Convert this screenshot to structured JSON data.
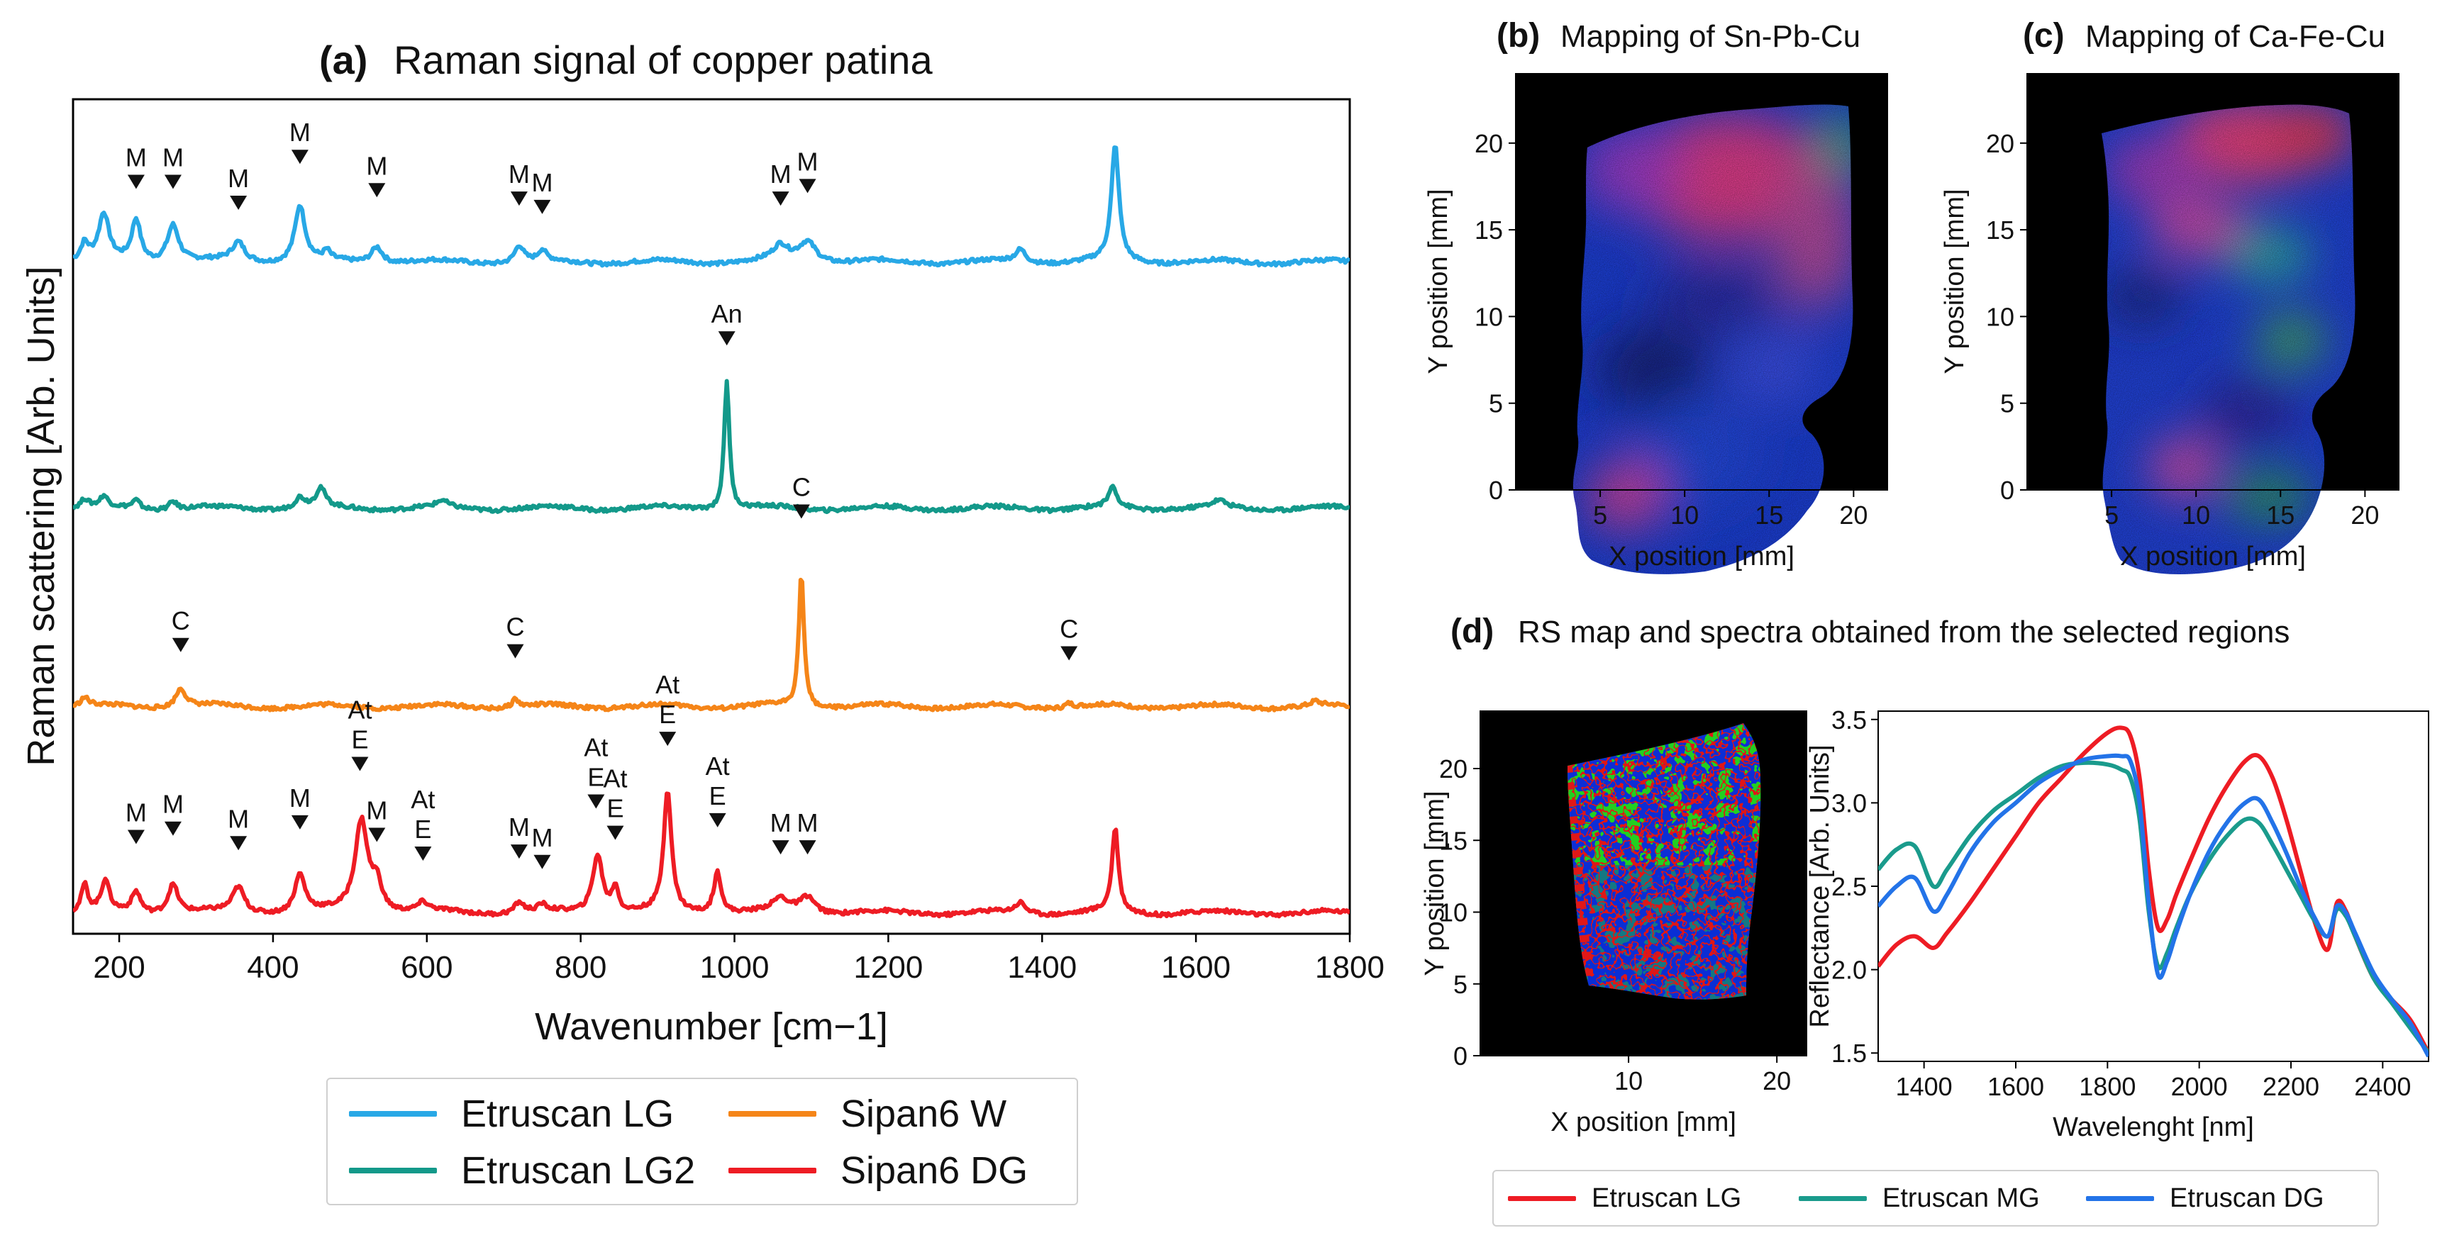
{
  "colors": {
    "etruscan_lg": "#28a8e6",
    "etruscan_lg2": "#13998a",
    "sipan6_w": "#f58518",
    "sipan6_dg": "#ee1c24",
    "d_lg": "#ee1c24",
    "d_mg": "#1a9b8c",
    "d_dg": "#2373e8",
    "map_bg": "#000000"
  },
  "chart_data": [
    {
      "id": "a",
      "type": "line",
      "panel_label": "(a)",
      "title": "Raman signal of copper patina",
      "xlabel": "Wavenumber [cm−1]",
      "ylabel": "Raman scattering [Arb. Units]",
      "xlim": [
        140,
        1800
      ],
      "ylim": [
        0,
        4
      ],
      "xticks": [
        "200",
        "400",
        "600",
        "800",
        "1000",
        "1200",
        "1400",
        "1600",
        "1800"
      ],
      "xtick_values": [
        200,
        400,
        600,
        800,
        1000,
        1200,
        1400,
        1600,
        1800
      ],
      "y_ticks_shown": false,
      "series": [
        {
          "name": "Etruscan LG",
          "color_key": "etruscan_lg",
          "baseline": 3.22,
          "peaks": [
            [
              155,
              0.08,
              6
            ],
            [
              180,
              0.22,
              8
            ],
            [
              222,
              0.2,
              7
            ],
            [
              270,
              0.18,
              9
            ],
            [
              355,
              0.09,
              10
            ],
            [
              435,
              0.27,
              8
            ],
            [
              470,
              0.04,
              5
            ],
            [
              535,
              0.08,
              9
            ],
            [
              720,
              0.08,
              7
            ],
            [
              750,
              0.05,
              6
            ],
            [
              1060,
              0.07,
              12
            ],
            [
              1095,
              0.1,
              14
            ],
            [
              1372,
              0.06,
              8
            ],
            [
              1495,
              0.55,
              6
            ]
          ],
          "annotations": [
            {
              "x": 222,
              "label": "M",
              "y": 3.57
            },
            {
              "x": 270,
              "label": "M",
              "y": 3.57
            },
            {
              "x": 355,
              "label": "M",
              "y": 3.47
            },
            {
              "x": 435,
              "label": "M",
              "y": 3.69
            },
            {
              "x": 535,
              "label": "M",
              "y": 3.53
            },
            {
              "x": 720,
              "label": "M",
              "y": 3.49
            },
            {
              "x": 750,
              "label": "M",
              "y": 3.45
            },
            {
              "x": 1060,
              "label": "M",
              "y": 3.49
            },
            {
              "x": 1095,
              "label": "M",
              "y": 3.55
            }
          ]
        },
        {
          "name": "Etruscan LG2",
          "color_key": "etruscan_lg2",
          "baseline": 2.04,
          "peaks": [
            [
              155,
              0.04,
              6
            ],
            [
              180,
              0.05,
              6
            ],
            [
              222,
              0.04,
              6
            ],
            [
              270,
              0.04,
              6
            ],
            [
              435,
              0.05,
              8
            ],
            [
              462,
              0.09,
              7
            ],
            [
              620,
              0.03,
              8
            ],
            [
              990,
              0.62,
              4
            ],
            [
              1492,
              0.1,
              6
            ],
            [
              1630,
              0.03,
              10
            ]
          ],
          "annotations": [
            {
              "x": 990,
              "label": "An",
              "y": 2.82
            }
          ]
        },
        {
          "name": "Sipan6 W",
          "color_key": "sipan6_w",
          "baseline": 1.09,
          "peaks": [
            [
              155,
              0.04,
              6
            ],
            [
              280,
              0.09,
              8
            ],
            [
              715,
              0.04,
              5
            ],
            [
              1087,
              0.64,
              4
            ],
            [
              1435,
              0.02,
              6
            ],
            [
              1755,
              0.02,
              6
            ]
          ],
          "annotations": [
            {
              "x": 280,
              "label": "C",
              "y": 1.35
            },
            {
              "x": 715,
              "label": "C",
              "y": 1.32
            },
            {
              "x": 1087,
              "label": "C",
              "y": 1.99
            },
            {
              "x": 1435,
              "label": "C",
              "y": 1.31
            }
          ]
        },
        {
          "name": "Sipan6 DG",
          "color_key": "sipan6_dg",
          "baseline": 0.1,
          "peaks": [
            [
              155,
              0.13,
              5
            ],
            [
              182,
              0.15,
              6
            ],
            [
              222,
              0.1,
              7
            ],
            [
              270,
              0.14,
              8
            ],
            [
              355,
              0.12,
              9
            ],
            [
              435,
              0.18,
              8
            ],
            [
              515,
              0.44,
              10
            ],
            [
              535,
              0.13,
              8
            ],
            [
              595,
              0.04,
              8
            ],
            [
              720,
              0.05,
              7
            ],
            [
              750,
              0.03,
              6
            ],
            [
              822,
              0.28,
              8
            ],
            [
              845,
              0.12,
              5
            ],
            [
              913,
              0.58,
              6
            ],
            [
              978,
              0.2,
              6
            ],
            [
              1060,
              0.06,
              12
            ],
            [
              1095,
              0.08,
              12
            ],
            [
              1372,
              0.05,
              8
            ],
            [
              1495,
              0.4,
              5
            ]
          ],
          "annotations": [
            {
              "x": 222,
              "label": "M",
              "y": 0.43
            },
            {
              "x": 270,
              "label": "M",
              "y": 0.47
            },
            {
              "x": 355,
              "label": "M",
              "y": 0.4
            },
            {
              "x": 435,
              "label": "M",
              "y": 0.5
            },
            {
              "x": 513,
              "label": "At\nE",
              "y": 0.78
            },
            {
              "x": 535,
              "label": "M",
              "y": 0.44
            },
            {
              "x": 595,
              "label": "At\nE",
              "y": 0.35
            },
            {
              "x": 720,
              "label": "M",
              "y": 0.36
            },
            {
              "x": 750,
              "label": "M",
              "y": 0.31
            },
            {
              "x": 820,
              "label": "At\nE",
              "y": 0.6
            },
            {
              "x": 845,
              "label": "At\nE",
              "y": 0.45
            },
            {
              "x": 913,
              "label": "At\nE",
              "y": 0.9
            },
            {
              "x": 978,
              "label": "At\nE",
              "y": 0.51
            },
            {
              "x": 1060,
              "label": "M",
              "y": 0.38
            },
            {
              "x": 1095,
              "label": "M",
              "y": 0.38
            }
          ]
        }
      ],
      "legend": {
        "position": "below",
        "items": [
          {
            "label": "Etruscan LG",
            "color_key": "etruscan_lg"
          },
          {
            "label": "Sipan6 W",
            "color_key": "sipan6_w"
          },
          {
            "label": "Etruscan LG2",
            "color_key": "etruscan_lg2"
          },
          {
            "label": "Sipan6 DG",
            "color_key": "sipan6_dg"
          }
        ]
      }
    },
    {
      "id": "b",
      "type": "heatmap",
      "panel_label": "(b)",
      "title": "Mapping of Sn-Pb-Cu",
      "xlabel": "X position [mm]",
      "ylabel": "Y position [mm]",
      "xlim": [
        0,
        22
      ],
      "ylim": [
        0,
        24
      ],
      "xticks": [
        5,
        10,
        15,
        20
      ],
      "yticks": [
        0,
        5,
        10,
        15,
        20
      ],
      "channels": [
        "Sn",
        "Pb",
        "Cu"
      ]
    },
    {
      "id": "c",
      "type": "heatmap",
      "panel_label": "(c)",
      "title": "Mapping of Ca-Fe-Cu",
      "xlabel": "X position [mm]",
      "ylabel": "Y position [mm]",
      "xlim": [
        0,
        22
      ],
      "ylim": [
        0,
        24
      ],
      "xticks": [
        5,
        10,
        15,
        20
      ],
      "yticks": [
        0,
        5,
        10,
        15,
        20
      ],
      "channels": [
        "Ca",
        "Fe",
        "Cu"
      ]
    },
    {
      "id": "d_map",
      "type": "heatmap",
      "panel_label": "(d)",
      "title": "RS map and spectra obtained from the selected regions",
      "xlabel": "X position [mm]",
      "ylabel": "Y position [mm]",
      "xlim": [
        0,
        22
      ],
      "ylim": [
        0,
        24
      ],
      "xticks": [
        10,
        20
      ],
      "yticks": [
        0,
        5,
        10,
        15,
        20
      ]
    },
    {
      "id": "d_spectra",
      "type": "line",
      "xlabel": "Wavelenght [nm]",
      "ylabel": "Reflectance [Arb. Units]",
      "xlim": [
        1300,
        2500
      ],
      "ylim": [
        1.45,
        3.55
      ],
      "xticks": [
        1400,
        1600,
        1800,
        2000,
        2200,
        2400
      ],
      "yticks": [
        1.5,
        2.0,
        2.5,
        3.0,
        3.5
      ],
      "series": [
        {
          "name": "Etruscan LG",
          "color_key": "d_lg",
          "x": [
            1300,
            1340,
            1380,
            1420,
            1450,
            1500,
            1550,
            1600,
            1650,
            1700,
            1750,
            1800,
            1830,
            1850,
            1870,
            1890,
            1910,
            1930,
            1950,
            1980,
            2020,
            2060,
            2100,
            2130,
            2160,
            2190,
            2220,
            2250,
            2280,
            2300,
            2320,
            2340,
            2380,
            2420,
            2460,
            2500
          ],
          "values": [
            2.02,
            2.15,
            2.2,
            2.13,
            2.22,
            2.4,
            2.6,
            2.8,
            3.0,
            3.15,
            3.3,
            3.42,
            3.45,
            3.4,
            3.15,
            2.6,
            2.25,
            2.3,
            2.45,
            2.65,
            2.9,
            3.1,
            3.25,
            3.28,
            3.15,
            2.9,
            2.6,
            2.3,
            2.12,
            2.4,
            2.35,
            2.2,
            1.95,
            1.82,
            1.7,
            1.5
          ]
        },
        {
          "name": "Etruscan MG",
          "color_key": "d_mg",
          "x": [
            1300,
            1340,
            1380,
            1420,
            1450,
            1500,
            1550,
            1600,
            1650,
            1700,
            1750,
            1800,
            1830,
            1850,
            1870,
            1890,
            1910,
            1930,
            1950,
            1980,
            2020,
            2060,
            2100,
            2130,
            2160,
            2190,
            2220,
            2250,
            2280,
            2300,
            2320,
            2340,
            2380,
            2420,
            2460,
            2500
          ],
          "values": [
            2.6,
            2.72,
            2.74,
            2.5,
            2.6,
            2.8,
            2.95,
            3.05,
            3.15,
            3.22,
            3.24,
            3.23,
            3.2,
            3.15,
            2.9,
            2.35,
            2.02,
            2.1,
            2.25,
            2.45,
            2.65,
            2.8,
            2.9,
            2.88,
            2.75,
            2.6,
            2.45,
            2.3,
            2.2,
            2.36,
            2.32,
            2.2,
            1.95,
            1.8,
            1.65,
            1.5
          ]
        },
        {
          "name": "Etruscan DG",
          "color_key": "d_dg",
          "x": [
            1300,
            1340,
            1380,
            1420,
            1450,
            1500,
            1550,
            1600,
            1650,
            1700,
            1750,
            1800,
            1830,
            1850,
            1870,
            1890,
            1910,
            1930,
            1950,
            1980,
            2020,
            2060,
            2100,
            2130,
            2160,
            2190,
            2220,
            2250,
            2280,
            2300,
            2320,
            2340,
            2380,
            2420,
            2460,
            2500
          ],
          "values": [
            2.38,
            2.5,
            2.55,
            2.35,
            2.45,
            2.7,
            2.88,
            3.0,
            3.12,
            3.2,
            3.26,
            3.28,
            3.28,
            3.25,
            3.0,
            2.4,
            1.97,
            2.05,
            2.22,
            2.45,
            2.7,
            2.88,
            3.0,
            3.02,
            2.88,
            2.7,
            2.5,
            2.32,
            2.2,
            2.38,
            2.34,
            2.22,
            1.98,
            1.82,
            1.68,
            1.48
          ]
        }
      ],
      "legend": {
        "position": "below",
        "items": [
          {
            "label": "Etruscan LG",
            "color_key": "d_lg"
          },
          {
            "label": "Etruscan MG",
            "color_key": "d_mg"
          },
          {
            "label": "Etruscan DG",
            "color_key": "d_dg"
          }
        ]
      }
    }
  ]
}
